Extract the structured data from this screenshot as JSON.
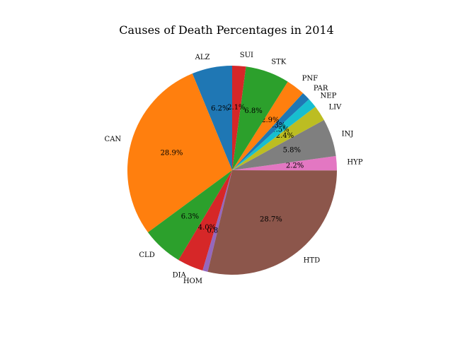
{
  "chart_data": {
    "type": "pie",
    "title": "Causes of Death Percentages in 2014",
    "start_angle_deg": 90,
    "direction": "counterclockwise",
    "slices": [
      {
        "label": "ALZ",
        "value": 6.2,
        "pct_label": "6.2%",
        "color": "#1f77b4"
      },
      {
        "label": "CAN",
        "value": 28.9,
        "pct_label": "28.9%",
        "color": "#ff7f0e"
      },
      {
        "label": "CLD",
        "value": 6.3,
        "pct_label": "6.3%",
        "color": "#2ca02c"
      },
      {
        "label": "DIA",
        "value": 4.0,
        "pct_label": "4.0%",
        "color": "#d62728"
      },
      {
        "label": "HOM",
        "value": 0.8,
        "pct_label": "0.8%",
        "color": "#9467bd"
      },
      {
        "label": "HTD",
        "value": 28.7,
        "pct_label": "28.7%",
        "color": "#8c564b"
      },
      {
        "label": "HYP",
        "value": 2.2,
        "pct_label": "2.2%",
        "color": "#e377c2"
      },
      {
        "label": "INJ",
        "value": 5.8,
        "pct_label": "5.8%",
        "color": "#7f7f7f"
      },
      {
        "label": "LIV",
        "value": 2.4,
        "pct_label": "2.4%",
        "color": "#bcbd22"
      },
      {
        "label": "NEP",
        "value": 1.5,
        "pct_label": "1.5%",
        "color": "#17becf"
      },
      {
        "label": "PAR",
        "value": 1.3,
        "pct_label": "1.3%",
        "color": "#1f77b4"
      },
      {
        "label": "PNF",
        "value": 2.9,
        "pct_label": "2.9%",
        "color": "#ff7f0e"
      },
      {
        "label": "STK",
        "value": 6.8,
        "pct_label": "6.8%",
        "color": "#2ca02c"
      },
      {
        "label": "SUI",
        "value": 2.1,
        "pct_label": "2.1%",
        "color": "#d62728"
      }
    ]
  }
}
